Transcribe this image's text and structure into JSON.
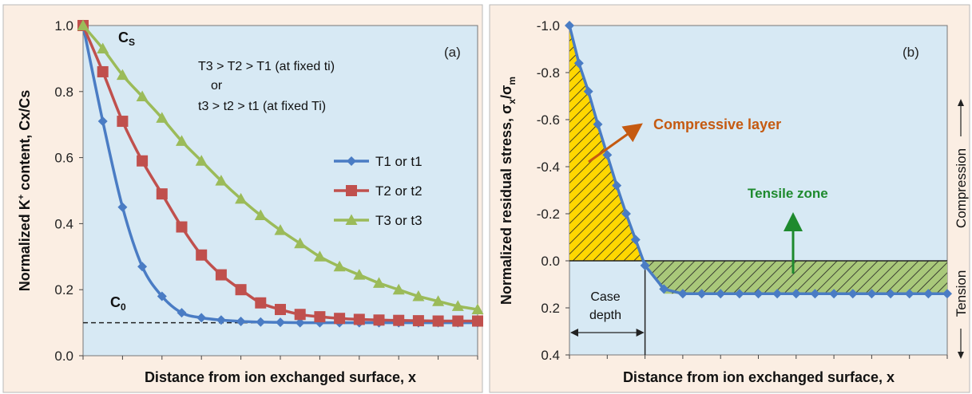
{
  "chart_data": [
    {
      "type": "line",
      "panel_label": "(a)",
      "xlabel": "Distance from ion exchanged surface, x",
      "ylabel_parts": [
        "Normalized K",
        "+",
        " content, Cx/Cs"
      ],
      "ylim": [
        0.0,
        1.0
      ],
      "yticks": [
        "0.0",
        "0.2",
        "0.4",
        "0.6",
        "0.8",
        "1.0"
      ],
      "x_range": [
        0,
        20
      ],
      "series": [
        {
          "name": "T1 or t1",
          "color": "#4a7cc4",
          "marker": "diamond",
          "x": [
            0,
            1,
            2,
            3,
            4,
            5,
            6,
            7,
            8,
            9,
            10,
            11,
            12,
            13,
            14,
            15,
            16,
            17,
            18,
            19,
            20
          ],
          "y": [
            1.0,
            0.71,
            0.45,
            0.27,
            0.18,
            0.13,
            0.115,
            0.108,
            0.104,
            0.102,
            0.101,
            0.1,
            0.1,
            0.1,
            0.1,
            0.1,
            0.1,
            0.1,
            0.1,
            0.1,
            0.1
          ]
        },
        {
          "name": "T2 or t2",
          "color": "#c0504d",
          "marker": "square",
          "x": [
            0,
            1,
            2,
            3,
            4,
            5,
            6,
            7,
            8,
            9,
            10,
            11,
            12,
            13,
            14,
            15,
            16,
            17,
            18,
            19,
            20
          ],
          "y": [
            1.0,
            0.86,
            0.71,
            0.59,
            0.49,
            0.39,
            0.305,
            0.245,
            0.2,
            0.16,
            0.14,
            0.125,
            0.118,
            0.113,
            0.11,
            0.108,
            0.107,
            0.106,
            0.105,
            0.105,
            0.105
          ]
        },
        {
          "name": "T3 or t3",
          "color": "#9bbb59",
          "marker": "triangle",
          "x": [
            0,
            1,
            2,
            3,
            4,
            5,
            6,
            7,
            8,
            9,
            10,
            11,
            12,
            13,
            14,
            15,
            16,
            17,
            18,
            19,
            20
          ],
          "y": [
            1.0,
            0.93,
            0.85,
            0.785,
            0.72,
            0.65,
            0.59,
            0.53,
            0.475,
            0.425,
            0.38,
            0.34,
            0.3,
            0.27,
            0.245,
            0.22,
            0.2,
            0.18,
            0.165,
            0.15,
            0.14
          ]
        }
      ],
      "reference_line": {
        "y": 0.1,
        "style": "dashed"
      },
      "annotations": {
        "cs": [
          "C",
          "S"
        ],
        "c0": [
          "C",
          "0"
        ],
        "condition_lines": [
          "T3 > T2 > T1 (at fixed ti)",
          "or",
          "t3 > t2 > t1 (at fixed Ti)"
        ]
      },
      "legend_position": "center-right"
    },
    {
      "type": "line",
      "panel_label": "(b)",
      "xlabel": "Distance from ion exchanged surface, x",
      "ylabel_parts": [
        "Normalized residual stress, ",
        "σ",
        "x",
        "/",
        "σ",
        "m"
      ],
      "ylim": [
        0.4,
        -1.0
      ],
      "y_inverted": true,
      "yticks": [
        "-1.0",
        "-0.8",
        "-0.6",
        "-0.4",
        "-0.2",
        "0.0",
        "0.2",
        "0.4"
      ],
      "x_range": [
        0,
        20
      ],
      "series": [
        {
          "color": "#4a7cc4",
          "marker": "diamond",
          "x": [
            0,
            0.5,
            1,
            1.5,
            2,
            2.5,
            3,
            3.5,
            4,
            5,
            6,
            7,
            8,
            9,
            10,
            11,
            12,
            13,
            14,
            15,
            16,
            17,
            18,
            19,
            20
          ],
          "y": [
            -1.0,
            -0.84,
            -0.72,
            -0.58,
            -0.45,
            -0.32,
            -0.2,
            -0.09,
            0.02,
            0.12,
            0.14,
            0.14,
            0.14,
            0.14,
            0.14,
            0.14,
            0.14,
            0.14,
            0.14,
            0.14,
            0.14,
            0.14,
            0.14,
            0.14,
            0.14
          ]
        }
      ],
      "annotations": {
        "compressive_layer": "Compressive layer",
        "tensile_zone": "Tensile zone",
        "case_depth_lines": [
          "Case",
          "depth"
        ],
        "compression": "Compression",
        "tension": "Tension"
      },
      "colors": {
        "compressive": "#c55a11",
        "tensile": "#1e8a2e",
        "yellow_fill": "#ffd700",
        "green_fill": "#a9c87a"
      }
    }
  ]
}
